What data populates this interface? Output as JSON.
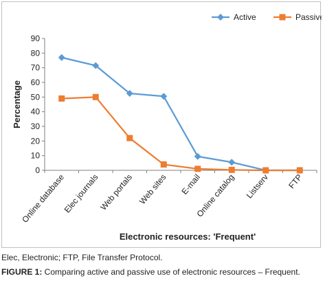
{
  "chart_data": {
    "type": "line",
    "categories": [
      "Online database",
      "Elec journals",
      "Web portals",
      "Web sites",
      "E-mail",
      "Online catalog",
      "Listserv",
      "FTP"
    ],
    "series": [
      {
        "name": "Active",
        "values": [
          77,
          71.5,
          52.5,
          50.5,
          9.5,
          5.5,
          0,
          0
        ],
        "color": "#5b9bd5",
        "marker": "diamond"
      },
      {
        "name": "Passive",
        "values": [
          49,
          50,
          22,
          4,
          1,
          0.3,
          0,
          0
        ],
        "color": "#ed7d31",
        "marker": "square"
      }
    ],
    "xlabel": "Electronic resources: 'Frequent'",
    "ylabel": "Percentage",
    "ylim": [
      0,
      90
    ],
    "yticks": [
      0,
      10,
      20,
      30,
      40,
      50,
      60,
      70,
      80,
      90
    ],
    "legend": "top-right",
    "grid": false
  },
  "captions": {
    "abbreviations": "Elec, Electronic; FTP, File Transfer Protocol.",
    "figure_label": "FIGURE 1:",
    "figure_text": " Comparing active and passive use of electronic resources – Frequent."
  }
}
